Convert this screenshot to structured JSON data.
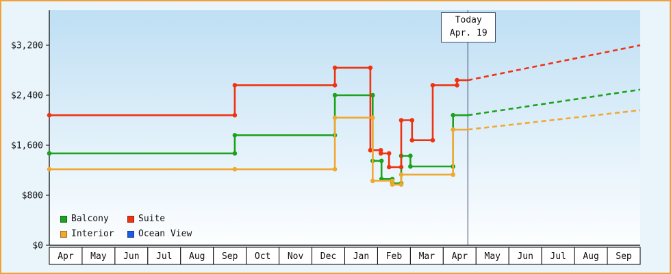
{
  "colors": {
    "frame": "#f0a13a",
    "background": "#e9f4fb",
    "plot_gradient_top": "#bfdff4",
    "plot_gradient_bottom": "#fdfeff",
    "axis": "#000000",
    "today_line": "#3a4668",
    "month_cell_bg": "#ffffff",
    "text": "#111111"
  },
  "chart_data": {
    "type": "line",
    "subtype": "step-price-history",
    "title": "",
    "xlabel": "",
    "ylabel": "",
    "grid": false,
    "legend_position": "bottom-left",
    "x_months": [
      "Apr",
      "May",
      "Jun",
      "Jul",
      "Aug",
      "Sep",
      "Oct",
      "Nov",
      "Dec",
      "Jan",
      "Feb",
      "Mar",
      "Apr",
      "May",
      "Jun",
      "Jul",
      "Aug",
      "Sep"
    ],
    "y_axis": {
      "max_value": 3200,
      "ticks": [
        {
          "value": 0,
          "label": "$0"
        },
        {
          "value": 800,
          "label": "$800"
        },
        {
          "value": 1600,
          "label": "$1,600"
        },
        {
          "value": 2400,
          "label": "$2,400"
        },
        {
          "value": 3200,
          "label": "$3,200"
        }
      ]
    },
    "today": {
      "x_month": 12.75,
      "label": "Today",
      "date": "Apr. 19"
    },
    "series": [
      {
        "id": "balcony",
        "name": "Balcony",
        "color": "#1da21d",
        "steps": [
          [
            0,
            1470
          ],
          [
            5.65,
            1760
          ],
          [
            8.7,
            2400
          ],
          [
            9.85,
            1350
          ],
          [
            10.12,
            1060
          ],
          [
            10.45,
            990
          ],
          [
            10.72,
            1430
          ],
          [
            11.0,
            1260
          ],
          [
            12.3,
            2080
          ]
        ],
        "projection_end": [
          18,
          2490
        ]
      },
      {
        "id": "suite",
        "name": "Suite",
        "color": "#ee3311",
        "steps": [
          [
            0,
            2080
          ],
          [
            5.65,
            2560
          ],
          [
            8.7,
            2840
          ],
          [
            9.78,
            1520
          ],
          [
            10.1,
            1470
          ],
          [
            10.35,
            1250
          ],
          [
            10.72,
            2000
          ],
          [
            11.05,
            1680
          ],
          [
            11.68,
            2560
          ],
          [
            12.42,
            2640
          ]
        ],
        "projection_end": [
          18,
          3200
        ]
      },
      {
        "id": "interior",
        "name": "Interior",
        "color": "#f0a830",
        "steps": [
          [
            0,
            1215
          ],
          [
            5.65,
            1215
          ],
          [
            8.7,
            2040
          ],
          [
            9.85,
            1030
          ],
          [
            10.45,
            970
          ],
          [
            10.72,
            1130
          ],
          [
            12.3,
            1850
          ]
        ],
        "projection_end": [
          18,
          2160
        ]
      },
      {
        "id": "ocean_view",
        "name": "Ocean View",
        "color": "#1a5ce8",
        "steps": [],
        "projection_end": null
      }
    ]
  }
}
